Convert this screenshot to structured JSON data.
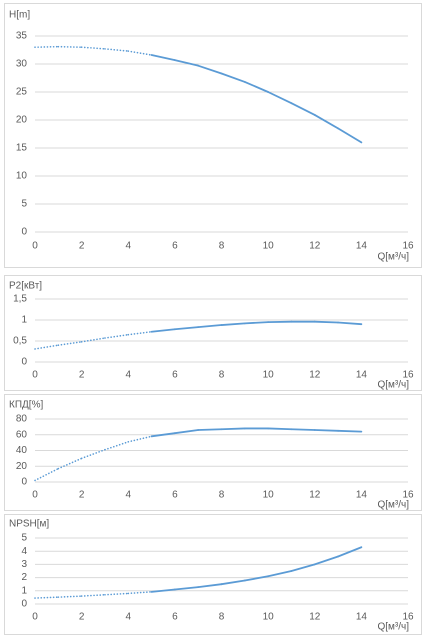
{
  "chart_data": [
    {
      "type": "line",
      "title": "H[m]",
      "x_label": "Q[м³/ч]",
      "color": "#5b9bd5",
      "dotted_until_x": 5,
      "grid": true,
      "x": [
        0,
        1,
        2,
        3,
        4,
        5,
        6,
        7,
        8,
        9,
        10,
        11,
        12,
        13,
        14
      ],
      "values": [
        33,
        33.1,
        33,
        32.7,
        32.3,
        31.6,
        30.7,
        29.7,
        28.3,
        26.8,
        25,
        23,
        20.9,
        18.5,
        16
      ],
      "xlim": [
        0,
        16
      ],
      "xticks": [
        0,
        2,
        4,
        6,
        8,
        10,
        12,
        14,
        16
      ],
      "ylim": [
        0,
        35
      ],
      "yticks": [
        0,
        5,
        10,
        15,
        20,
        25,
        30,
        35
      ]
    },
    {
      "type": "line",
      "title": "P2[кВт]",
      "x_label": "Q[м³/ч]",
      "color": "#5b9bd5",
      "dotted_until_x": 5,
      "grid": true,
      "x": [
        0,
        1,
        2,
        3,
        4,
        5,
        6,
        7,
        8,
        9,
        10,
        11,
        12,
        13,
        14
      ],
      "values": [
        0.31,
        0.4,
        0.48,
        0.57,
        0.65,
        0.72,
        0.78,
        0.83,
        0.88,
        0.92,
        0.95,
        0.96,
        0.96,
        0.94,
        0.9
      ],
      "xlim": [
        0,
        16
      ],
      "xticks": [
        0,
        2,
        4,
        6,
        8,
        10,
        12,
        14,
        16
      ],
      "ylim": [
        0,
        1.5
      ],
      "yticks": [
        0,
        {
          "value": 0.5,
          "label": "0,5"
        },
        1,
        {
          "value": 1.5,
          "label": "1,5"
        }
      ]
    },
    {
      "type": "line",
      "title": "КПД[%]",
      "x_label": "Q[м³/ч]",
      "color": "#5b9bd5",
      "dotted_until_x": 5,
      "grid": true,
      "x": [
        0,
        1,
        2,
        3,
        4,
        5,
        6,
        7,
        8,
        9,
        10,
        11,
        12,
        13,
        14
      ],
      "values": [
        2,
        17,
        30,
        41,
        51,
        58,
        62,
        66,
        67,
        68,
        68,
        67,
        66,
        65,
        64
      ],
      "xlim": [
        0,
        16
      ],
      "xticks": [
        0,
        2,
        4,
        6,
        8,
        10,
        12,
        14,
        16
      ],
      "ylim": [
        0,
        80
      ],
      "yticks": [
        0,
        20,
        40,
        60,
        80
      ]
    },
    {
      "type": "line",
      "title": "NPSH[м]",
      "x_label": "Q[м³/ч]",
      "color": "#5b9bd5",
      "dotted_until_x": 5,
      "grid": true,
      "x": [
        0,
        1,
        2,
        3,
        4,
        5,
        6,
        7,
        8,
        9,
        10,
        11,
        12,
        13,
        14
      ],
      "values": [
        0.45,
        0.52,
        0.6,
        0.7,
        0.8,
        0.92,
        1.1,
        1.28,
        1.5,
        1.78,
        2.1,
        2.5,
        3.0,
        3.6,
        4.3
      ],
      "xlim": [
        0,
        16
      ],
      "xticks": [
        0,
        2,
        4,
        6,
        8,
        10,
        12,
        14,
        16
      ],
      "ylim": [
        0,
        5
      ],
      "yticks": [
        0,
        1,
        2,
        3,
        4,
        5
      ]
    }
  ]
}
